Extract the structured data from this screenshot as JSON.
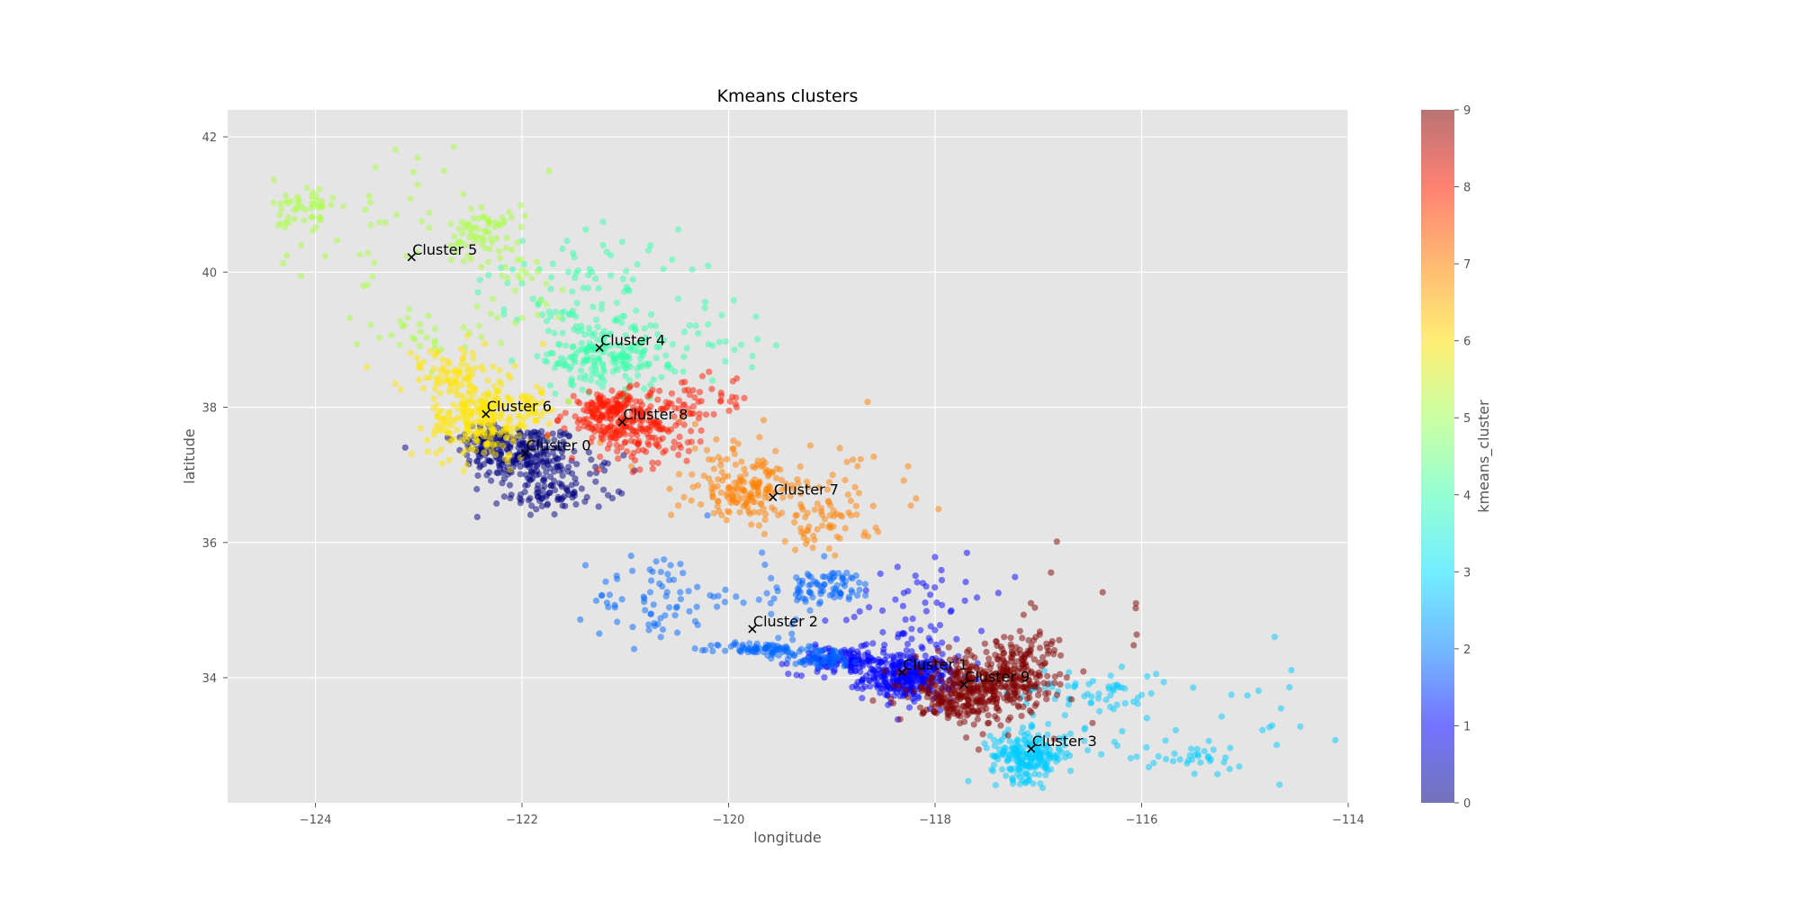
{
  "chart_data": {
    "type": "scatter",
    "title": "Kmeans clusters",
    "xlabel": "longitude",
    "ylabel": "latitude",
    "xlim": [
      -124.85,
      -114.0
    ],
    "ylim": [
      32.15,
      42.4
    ],
    "xticks": [
      -124,
      -122,
      -120,
      -118,
      -116,
      -114
    ],
    "xtick_labels": [
      "−124",
      "−122",
      "−120",
      "−118",
      "−116",
      "−114"
    ],
    "yticks": [
      34,
      36,
      38,
      40,
      42
    ],
    "yticks_labels": [
      "34",
      "36",
      "38",
      "40",
      "42"
    ],
    "grid": true,
    "colorbar": {
      "label": "kmeans_cluster",
      "range": [
        0,
        9
      ],
      "ticks": [
        "0",
        "1",
        "2",
        "3",
        "4",
        "5",
        "6",
        "7",
        "8",
        "9"
      ],
      "colormap": "jet",
      "stops": [
        "#000080",
        "#0000ff",
        "#0080ff",
        "#00e0ff",
        "#40ffb0",
        "#a0ff58",
        "#ffe000",
        "#ff8000",
        "#ff1a00",
        "#800000"
      ]
    },
    "clusters": [
      {
        "label": "Cluster 0",
        "id": 0,
        "color": "#000080",
        "centroid": [
          -121.97,
          37.32
        ],
        "blobs": [
          [
            -122.0,
            37.3,
            0.28,
            0.22,
            220
          ],
          [
            -121.8,
            36.7,
            0.18,
            0.15,
            60
          ],
          [
            -122.3,
            37.55,
            0.12,
            0.1,
            60
          ],
          [
            -121.5,
            36.9,
            0.25,
            0.2,
            40
          ]
        ]
      },
      {
        "label": "Cluster 1",
        "id": 1,
        "color": "#0000ff",
        "centroid": [
          -118.32,
          34.08
        ],
        "blobs": [
          [
            -118.25,
            34.0,
            0.22,
            0.16,
            320
          ],
          [
            -118.9,
            34.25,
            0.25,
            0.1,
            120
          ],
          [
            -118.3,
            34.6,
            0.3,
            0.25,
            40
          ],
          [
            -118.0,
            35.3,
            0.35,
            0.3,
            30
          ]
        ]
      },
      {
        "label": "Cluster 2",
        "id": 2,
        "color": "#0066ff",
        "centroid": [
          -119.77,
          34.72
        ],
        "blobs": [
          [
            -120.7,
            35.2,
            0.3,
            0.35,
            70
          ],
          [
            -119.7,
            34.42,
            0.2,
            0.05,
            70
          ],
          [
            -119.1,
            34.3,
            0.2,
            0.08,
            60
          ],
          [
            -119.0,
            35.35,
            0.2,
            0.12,
            70
          ],
          [
            -119.5,
            35.2,
            0.3,
            0.3,
            30
          ]
        ]
      },
      {
        "label": "Cluster 3",
        "id": 3,
        "color": "#00ccff",
        "centroid": [
          -117.07,
          32.95
        ],
        "blobs": [
          [
            -117.1,
            32.85,
            0.18,
            0.18,
            220
          ],
          [
            -116.5,
            33.8,
            0.4,
            0.2,
            60
          ],
          [
            -115.5,
            32.8,
            0.25,
            0.1,
            30
          ],
          [
            -114.6,
            33.5,
            0.3,
            0.5,
            15
          ],
          [
            -116.2,
            33.3,
            0.5,
            0.4,
            20
          ]
        ]
      },
      {
        "label": "Cluster 4",
        "id": 4,
        "color": "#33ffaa",
        "centroid": [
          -121.25,
          38.88
        ],
        "blobs": [
          [
            -121.2,
            38.75,
            0.3,
            0.25,
            200
          ],
          [
            -121.6,
            39.6,
            0.4,
            0.3,
            60
          ],
          [
            -120.2,
            39.1,
            0.3,
            0.3,
            30
          ],
          [
            -121.0,
            40.2,
            0.5,
            0.4,
            25
          ]
        ]
      },
      {
        "label": "Cluster 5",
        "id": 5,
        "color": "#aaff44",
        "centroid": [
          -123.07,
          40.22
        ],
        "blobs": [
          [
            -124.1,
            40.9,
            0.15,
            0.25,
            50
          ],
          [
            -122.4,
            40.6,
            0.15,
            0.2,
            60
          ],
          [
            -122.9,
            39.1,
            0.3,
            0.2,
            30
          ],
          [
            -123.2,
            40.8,
            0.6,
            0.6,
            40
          ],
          [
            -122.0,
            40.0,
            0.2,
            0.4,
            30
          ]
        ]
      },
      {
        "label": "Cluster 6",
        "id": 6,
        "color": "#ffe600",
        "centroid": [
          -122.35,
          37.9
        ],
        "blobs": [
          [
            -122.4,
            37.8,
            0.25,
            0.28,
            240
          ],
          [
            -122.7,
            38.5,
            0.25,
            0.2,
            80
          ],
          [
            -121.9,
            38.0,
            0.15,
            0.15,
            40
          ]
        ]
      },
      {
        "label": "Cluster 7",
        "id": 7,
        "color": "#ff8000",
        "centroid": [
          -119.57,
          36.67
        ],
        "blobs": [
          [
            -119.8,
            36.75,
            0.25,
            0.2,
            140
          ],
          [
            -119.1,
            36.3,
            0.25,
            0.2,
            60
          ],
          [
            -120.0,
            37.2,
            0.45,
            0.35,
            40
          ],
          [
            -118.8,
            36.8,
            0.5,
            0.5,
            20
          ]
        ]
      },
      {
        "label": "Cluster 8",
        "id": 8,
        "color": "#ff1a00",
        "centroid": [
          -121.03,
          37.78
        ],
        "blobs": [
          [
            -121.0,
            37.8,
            0.3,
            0.2,
            200
          ],
          [
            -121.2,
            38.0,
            0.1,
            0.1,
            60
          ],
          [
            -120.8,
            37.5,
            0.35,
            0.25,
            60
          ],
          [
            -120.3,
            38.1,
            0.25,
            0.2,
            40
          ]
        ]
      },
      {
        "label": "Cluster 9",
        "id": 9,
        "color": "#800000",
        "centroid": [
          -117.72,
          33.9
        ],
        "blobs": [
          [
            -117.6,
            33.85,
            0.3,
            0.2,
            300
          ],
          [
            -117.2,
            34.2,
            0.2,
            0.25,
            120
          ],
          [
            -117.8,
            33.6,
            0.15,
            0.15,
            60
          ],
          [
            -117.0,
            34.0,
            0.45,
            0.4,
            30
          ],
          [
            -116.8,
            34.8,
            0.5,
            0.5,
            12
          ]
        ]
      }
    ]
  }
}
